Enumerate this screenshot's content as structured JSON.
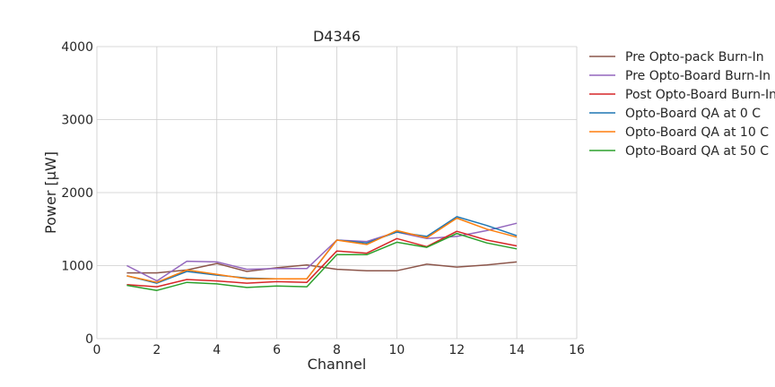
{
  "chart_data": {
    "type": "line",
    "title": "D4346",
    "xlabel": "Channel",
    "ylabel": "Power [μW]",
    "xlim": [
      0,
      16
    ],
    "ylim": [
      0,
      4000
    ],
    "xticks": [
      0,
      2,
      4,
      6,
      8,
      10,
      12,
      14,
      16
    ],
    "yticks": [
      0,
      1000,
      2000,
      3000,
      4000
    ],
    "grid": true,
    "legend_position": "outside-right",
    "x": [
      1,
      2,
      3,
      4,
      5,
      6,
      7,
      8,
      9,
      10,
      11,
      12,
      13,
      14
    ],
    "series": [
      {
        "name": "Pre Opto-pack Burn-In",
        "color": "#8c564b",
        "values": [
          900,
          900,
          940,
          1030,
          920,
          970,
          1010,
          950,
          930,
          930,
          1020,
          980,
          1010,
          1050
        ]
      },
      {
        "name": "Pre Opto-Board Burn-In",
        "color": "#9467bd",
        "values": [
          1000,
          790,
          1060,
          1050,
          950,
          960,
          960,
          1350,
          1330,
          1460,
          1370,
          1400,
          1480,
          1580
        ]
      },
      {
        "name": "Post Opto-Board Burn-In",
        "color": "#d62728",
        "values": [
          740,
          710,
          810,
          790,
          760,
          780,
          770,
          1200,
          1170,
          1370,
          1260,
          1470,
          1350,
          1270
        ]
      },
      {
        "name": "Opto-Board QA at 0 C",
        "color": "#1f77b4",
        "values": [
          860,
          760,
          920,
          870,
          830,
          820,
          820,
          1350,
          1310,
          1460,
          1400,
          1670,
          1550,
          1410
        ]
      },
      {
        "name": "Opto-Board QA at 10 C",
        "color": "#ff7f0e",
        "values": [
          860,
          770,
          940,
          880,
          820,
          820,
          820,
          1350,
          1290,
          1480,
          1380,
          1650,
          1500,
          1390
        ]
      },
      {
        "name": "Opto-Board QA at 50 C",
        "color": "#2ca02c",
        "values": [
          730,
          660,
          770,
          750,
          700,
          720,
          710,
          1150,
          1150,
          1320,
          1250,
          1440,
          1310,
          1230
        ]
      }
    ]
  }
}
